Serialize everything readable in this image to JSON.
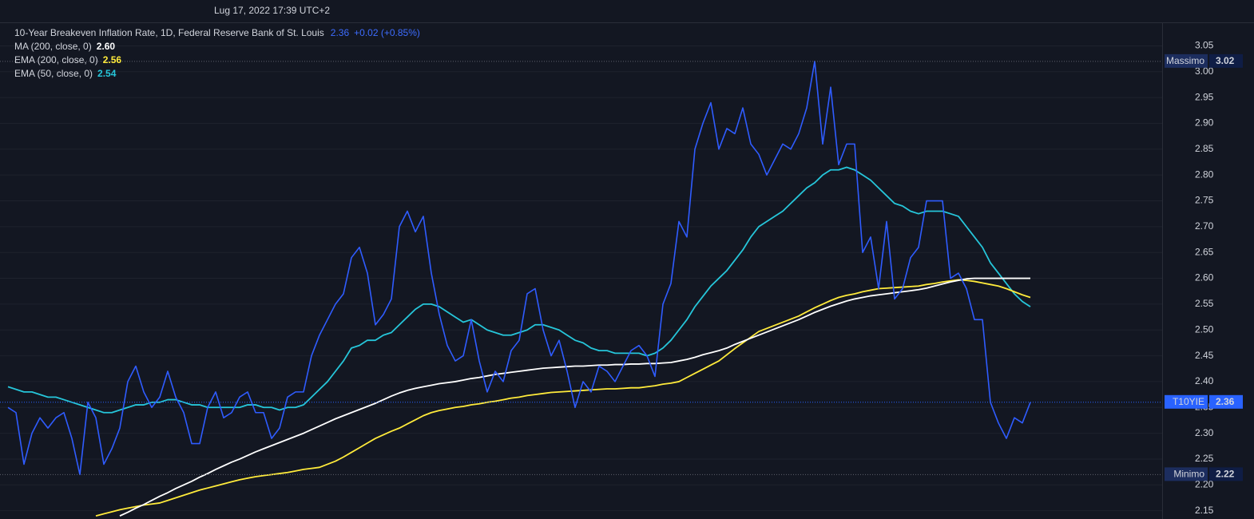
{
  "header": {
    "datetime": "Lug 17, 2022 17:39 UTC+2"
  },
  "chart_data": {
    "type": "line",
    "title": "10-Year Breakeven Inflation Rate, 1D, Federal Reserve Bank of St. Louis",
    "title_value": "2.36",
    "title_change": "+0.02 (+0.85%)",
    "ylim": [
      2.134,
      3.094
    ],
    "yticks": [
      2.15,
      {
        "value": 2.2,
        "label": "2.20"
      },
      2.25,
      {
        "value": 2.3,
        "label": "2.30"
      },
      2.35,
      {
        "value": 2.4,
        "label": "2.40"
      },
      2.45,
      {
        "value": 2.5,
        "label": "2.50"
      },
      2.55,
      {
        "value": 2.6,
        "label": "2.60"
      },
      2.65,
      {
        "value": 2.7,
        "label": "2.70"
      },
      2.75,
      {
        "value": 2.8,
        "label": "2.80"
      },
      2.85,
      {
        "value": 2.9,
        "label": "2.90"
      },
      2.95,
      {
        "value": 3.0,
        "label": "3.00"
      },
      3.05
    ],
    "grid": true,
    "series": [
      {
        "color": "#2f5cff",
        "values": [
          2.35,
          2.34,
          2.24,
          2.3,
          2.33,
          2.31,
          2.33,
          2.34,
          2.29,
          2.22,
          2.36,
          2.33,
          2.24,
          2.27,
          2.31,
          2.4,
          2.43,
          2.38,
          2.35,
          2.37,
          2.42,
          2.37,
          2.34,
          2.28,
          2.28,
          2.35,
          2.38,
          2.33,
          2.34,
          2.37,
          2.38,
          2.34,
          2.34,
          2.29,
          2.31,
          2.37,
          2.38,
          2.38,
          2.45,
          2.49,
          2.52,
          2.55,
          2.57,
          2.64,
          2.66,
          2.61,
          2.51,
          2.53,
          2.56,
          2.7,
          2.73,
          2.69,
          2.72,
          2.61,
          2.53,
          2.47,
          2.44,
          2.45,
          2.52,
          2.44,
          2.38,
          2.42,
          2.4,
          2.46,
          2.48,
          2.57,
          2.58,
          2.5,
          2.45,
          2.48,
          2.42,
          2.35,
          2.4,
          2.38,
          2.43,
          2.42,
          2.4,
          2.43,
          2.46,
          2.47,
          2.45,
          2.41,
          2.55,
          2.59,
          2.71,
          2.68,
          2.85,
          2.9,
          2.94,
          2.85,
          2.89,
          2.88,
          2.93,
          2.86,
          2.84,
          2.8,
          2.83,
          2.86,
          2.85,
          2.88,
          2.93,
          3.02,
          2.86,
          2.97,
          2.82,
          2.86,
          2.86,
          2.65,
          2.68,
          2.58,
          2.71,
          2.56,
          2.58,
          2.64,
          2.66,
          2.75,
          2.75,
          2.75,
          2.6,
          2.61,
          2.58,
          2.52,
          2.52,
          2.36,
          2.32,
          2.29,
          2.33,
          2.32,
          2.36
        ]
      },
      {
        "name": "MA (200, close, 0)",
        "legend_value": "2.60",
        "color": "#ffffff",
        "values": [
          null,
          null,
          null,
          null,
          null,
          null,
          null,
          null,
          null,
          null,
          null,
          null,
          null,
          null,
          2.14,
          2.147,
          2.155,
          2.162,
          2.17,
          2.178,
          2.185,
          2.193,
          2.2,
          2.207,
          2.215,
          2.222,
          2.23,
          2.237,
          2.244,
          2.25,
          2.257,
          2.264,
          2.27,
          2.276,
          2.282,
          2.288,
          2.294,
          2.3,
          2.307,
          2.314,
          2.321,
          2.328,
          2.334,
          2.34,
          2.346,
          2.352,
          2.358,
          2.365,
          2.372,
          2.378,
          2.383,
          2.387,
          2.39,
          2.393,
          2.396,
          2.398,
          2.4,
          2.403,
          2.406,
          2.408,
          2.411,
          2.414,
          2.416,
          2.418,
          2.42,
          2.422,
          2.424,
          2.426,
          2.427,
          2.428,
          2.429,
          2.43,
          2.43,
          2.431,
          2.432,
          2.432,
          2.433,
          2.433,
          2.434,
          2.434,
          2.435,
          2.435,
          2.436,
          2.437,
          2.44,
          2.443,
          2.447,
          2.452,
          2.456,
          2.46,
          2.465,
          2.472,
          2.478,
          2.484,
          2.49,
          2.496,
          2.502,
          2.508,
          2.514,
          2.52,
          2.527,
          2.534,
          2.54,
          2.546,
          2.551,
          2.556,
          2.56,
          2.563,
          2.566,
          2.568,
          2.57,
          2.572,
          2.574,
          2.576,
          2.578,
          2.581,
          2.585,
          2.589,
          2.593,
          2.596,
          2.599,
          2.6,
          2.6,
          2.6,
          2.6,
          2.6,
          2.6,
          2.6,
          2.6
        ]
      },
      {
        "name": "EMA (200, close, 0)",
        "legend_value": "2.56",
        "color": "#ffeb3b",
        "values": [
          null,
          null,
          null,
          null,
          null,
          null,
          null,
          null,
          null,
          null,
          null,
          2.14,
          2.144,
          2.148,
          2.152,
          2.155,
          2.158,
          2.161,
          2.163,
          2.165,
          2.17,
          2.175,
          2.18,
          2.185,
          2.19,
          2.194,
          2.198,
          2.202,
          2.206,
          2.21,
          2.213,
          2.216,
          2.218,
          2.22,
          2.222,
          2.224,
          2.227,
          2.23,
          2.232,
          2.234,
          2.24,
          2.246,
          2.254,
          2.263,
          2.272,
          2.281,
          2.29,
          2.297,
          2.304,
          2.31,
          2.318,
          2.326,
          2.334,
          2.34,
          2.344,
          2.347,
          2.35,
          2.352,
          2.355,
          2.357,
          2.36,
          2.362,
          2.365,
          2.368,
          2.37,
          2.373,
          2.375,
          2.377,
          2.379,
          2.38,
          2.381,
          2.382,
          2.383,
          2.384,
          2.385,
          2.386,
          2.386,
          2.387,
          2.388,
          2.388,
          2.39,
          2.392,
          2.395,
          2.397,
          2.4,
          2.408,
          2.416,
          2.424,
          2.432,
          2.44,
          2.452,
          2.464,
          2.475,
          2.486,
          2.497,
          2.503,
          2.509,
          2.515,
          2.521,
          2.527,
          2.535,
          2.543,
          2.55,
          2.557,
          2.563,
          2.567,
          2.57,
          2.574,
          2.577,
          2.58,
          2.581,
          2.582,
          2.583,
          2.584,
          2.585,
          2.588,
          2.59,
          2.593,
          2.595,
          2.597,
          2.596,
          2.594,
          2.591,
          2.588,
          2.585,
          2.58,
          2.574,
          2.568,
          2.563
        ]
      },
      {
        "name": "EMA (50, close, 0)",
        "legend_value": "2.54",
        "color": "#26c6da",
        "values": [
          2.39,
          2.385,
          2.38,
          2.38,
          2.375,
          2.37,
          2.37,
          2.365,
          2.36,
          2.355,
          2.35,
          2.345,
          2.34,
          2.34,
          2.345,
          2.35,
          2.355,
          2.355,
          2.36,
          2.36,
          2.365,
          2.365,
          2.36,
          2.355,
          2.355,
          2.35,
          2.35,
          2.35,
          2.35,
          2.35,
          2.355,
          2.355,
          2.35,
          2.35,
          2.345,
          2.35,
          2.35,
          2.355,
          2.37,
          2.385,
          2.4,
          2.42,
          2.44,
          2.465,
          2.47,
          2.48,
          2.48,
          2.49,
          2.495,
          2.51,
          2.525,
          2.54,
          2.55,
          2.55,
          2.545,
          2.535,
          2.525,
          2.515,
          2.52,
          2.51,
          2.5,
          2.495,
          2.49,
          2.49,
          2.495,
          2.5,
          2.51,
          2.51,
          2.505,
          2.5,
          2.49,
          2.48,
          2.475,
          2.465,
          2.46,
          2.46,
          2.455,
          2.455,
          2.455,
          2.455,
          2.45,
          2.455,
          2.465,
          2.48,
          2.5,
          2.52,
          2.545,
          2.565,
          2.585,
          2.6,
          2.615,
          2.635,
          2.655,
          2.68,
          2.7,
          2.71,
          2.72,
          2.73,
          2.745,
          2.76,
          2.775,
          2.785,
          2.8,
          2.81,
          2.81,
          2.815,
          2.81,
          2.8,
          2.79,
          2.775,
          2.76,
          2.745,
          2.74,
          2.73,
          2.725,
          2.73,
          2.73,
          2.73,
          2.725,
          2.72,
          2.7,
          2.68,
          2.66,
          2.63,
          2.61,
          2.59,
          2.57,
          2.555,
          2.545
        ]
      }
    ],
    "price_labels": [
      {
        "label": "Massimo",
        "value": 3.02
      },
      {
        "label": "T10YIE",
        "value": 2.36
      },
      {
        "label": "Minimo",
        "value": 2.22
      }
    ]
  }
}
